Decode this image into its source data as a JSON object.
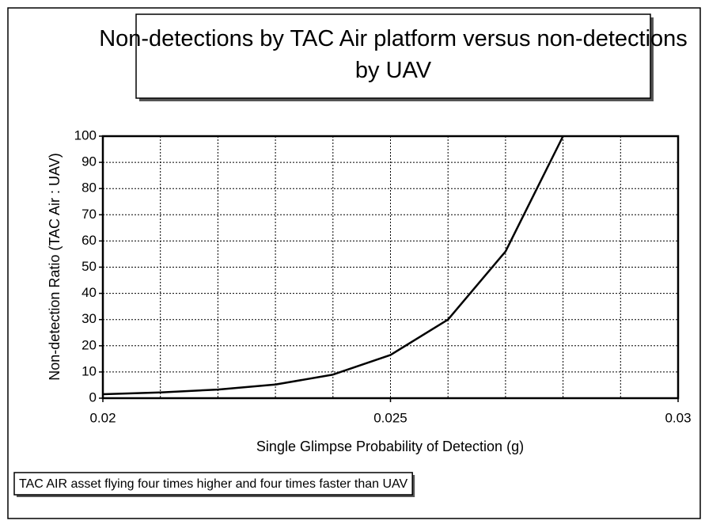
{
  "chart_data": {
    "type": "line",
    "title": "Non-detections by TAC Air platform versus non-detections by UAV",
    "x_label": "Single Glimpse Probability of Detection (g)",
    "y_label": "Non-detection Ratio (TAC Air : UAV)",
    "x": [
      0.02,
      0.021,
      0.022,
      0.023,
      0.024,
      0.025,
      0.026,
      0.027,
      0.028
    ],
    "series": [
      {
        "name": "TAC AIR asset flying four times higher and four times faster than UAV",
        "color": "#000000",
        "values": [
          1.5,
          2.2,
          3.3,
          5.2,
          9,
          16.5,
          30,
          56,
          100
        ]
      }
    ],
    "xlim": [
      0.02,
      0.03
    ],
    "xticks": [
      0.02,
      0.025,
      0.03
    ],
    "xgrid": [
      0.021,
      0.022,
      0.023,
      0.024,
      0.025,
      0.026,
      0.027,
      0.028,
      0.029
    ],
    "ylim": [
      0,
      100
    ],
    "yticks": [
      0,
      10,
      20,
      30,
      40,
      50,
      60,
      70,
      80,
      90,
      100
    ],
    "grid": true,
    "legend": "bottom-left"
  }
}
